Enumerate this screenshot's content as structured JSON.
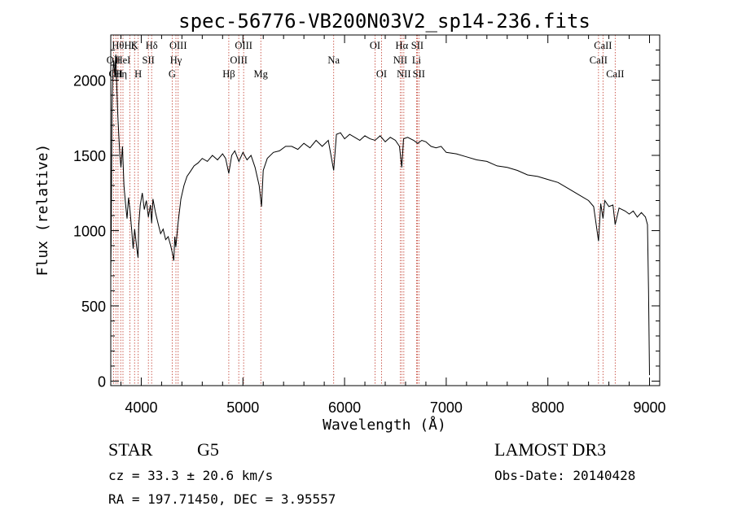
{
  "chart_data": {
    "type": "line",
    "title": "spec-56776-VB200N03V2_sp14-236.fits",
    "xlabel": "Wavelength (Å)",
    "ylabel": "Flux (relative)",
    "xlim": [
      3700,
      9100
    ],
    "ylim": [
      -30,
      2300
    ],
    "xticks": [
      4000,
      5000,
      6000,
      7000,
      8000,
      9000
    ],
    "yticks": [
      0,
      500,
      1000,
      1500,
      2000
    ],
    "grid": false,
    "series": [
      {
        "color": "#000000",
        "x": [
          3700,
          3705,
          3712,
          3720,
          3730,
          3740,
          3750,
          3760,
          3770,
          3780,
          3790,
          3800,
          3815,
          3830,
          3845,
          3860,
          3875,
          3890,
          3905,
          3920,
          3935,
          3950,
          3960,
          3968,
          3975,
          3990,
          4010,
          4030,
          4050,
          4070,
          4090,
          4102,
          4115,
          4140,
          4165,
          4190,
          4215,
          4240,
          4265,
          4290,
          4310,
          4320,
          4330,
          4340,
          4360,
          4390,
          4420,
          4450,
          4480,
          4520,
          4560,
          4600,
          4650,
          4700,
          4750,
          4800,
          4830,
          4861,
          4890,
          4920,
          4960,
          5000,
          5040,
          5080,
          5120,
          5160,
          5183,
          5200,
          5240,
          5300,
          5360,
          5420,
          5480,
          5540,
          5600,
          5660,
          5720,
          5780,
          5840,
          5893,
          5920,
          5960,
          6000,
          6050,
          6100,
          6150,
          6200,
          6250,
          6300,
          6350,
          6400,
          6450,
          6500,
          6540,
          6563,
          6580,
          6620,
          6680,
          6720,
          6760,
          6800,
          6850,
          6900,
          6950,
          7000,
          7100,
          7200,
          7300,
          7400,
          7500,
          7600,
          7700,
          7800,
          7900,
          8000,
          8100,
          8200,
          8300,
          8400,
          8450,
          8498,
          8520,
          8542,
          8560,
          8600,
          8640,
          8662,
          8700,
          8760,
          8800,
          8840,
          8880,
          8920,
          8960,
          8980,
          8990,
          9000
        ],
        "y": [
          700,
          1000,
          1800,
          2050,
          2130,
          2020,
          2170,
          1940,
          1760,
          1620,
          1500,
          1420,
          1560,
          1300,
          1180,
          1080,
          1220,
          1130,
          1010,
          880,
          1010,
          920,
          860,
          820,
          1030,
          1170,
          1250,
          1140,
          1200,
          1090,
          1170,
          1050,
          1210,
          1120,
          1050,
          980,
          1010,
          940,
          960,
          900,
          840,
          800,
          960,
          890,
          1040,
          1210,
          1300,
          1360,
          1390,
          1430,
          1450,
          1480,
          1460,
          1500,
          1470,
          1510,
          1480,
          1380,
          1500,
          1530,
          1460,
          1520,
          1470,
          1500,
          1420,
          1300,
          1160,
          1400,
          1480,
          1520,
          1530,
          1560,
          1560,
          1540,
          1580,
          1550,
          1600,
          1560,
          1600,
          1400,
          1640,
          1650,
          1610,
          1640,
          1620,
          1600,
          1630,
          1610,
          1600,
          1630,
          1590,
          1620,
          1600,
          1560,
          1420,
          1610,
          1620,
          1600,
          1580,
          1600,
          1590,
          1560,
          1550,
          1560,
          1520,
          1510,
          1490,
          1470,
          1460,
          1430,
          1420,
          1400,
          1370,
          1360,
          1340,
          1320,
          1280,
          1240,
          1200,
          1160,
          930,
          1180,
          1080,
          1200,
          1160,
          1170,
          1040,
          1150,
          1130,
          1110,
          1130,
          1090,
          1120,
          1090,
          1040,
          600,
          40
        ]
      }
    ],
    "lines": [
      {
        "x": 3727,
        "label": "OII",
        "row": 1
      },
      {
        "x": 3750,
        "label": "OII",
        "row": 2
      },
      {
        "x": 3771,
        "label": "Hθ",
        "row": 0
      },
      {
        "x": 3798,
        "label": "Hη",
        "row": 2
      },
      {
        "x": 3820,
        "label": "HeI",
        "row": 1
      },
      {
        "x": 3889,
        "label": "Hζ",
        "row": 0
      },
      {
        "x": 3934,
        "label": "K",
        "row": 0
      },
      {
        "x": 3970,
        "label": "H",
        "row": 2
      },
      {
        "x": 4070,
        "label": "SII",
        "row": 1
      },
      {
        "x": 4102,
        "label": "Hδ",
        "row": 0
      },
      {
        "x": 4304,
        "label": "G",
        "row": 2
      },
      {
        "x": 4341,
        "label": "Hγ",
        "row": 1
      },
      {
        "x": 4363,
        "label": "OIII",
        "row": 0
      },
      {
        "x": 4861,
        "label": "Hβ",
        "row": 2
      },
      {
        "x": 4959,
        "label": "OIII",
        "row": 1
      },
      {
        "x": 5007,
        "label": "OIII",
        "row": 0
      },
      {
        "x": 5176,
        "label": "Mg",
        "row": 2
      },
      {
        "x": 5893,
        "label": "Na",
        "row": 1
      },
      {
        "x": 6300,
        "label": "OI",
        "row": 0
      },
      {
        "x": 6364,
        "label": "OI",
        "row": 2
      },
      {
        "x": 6548,
        "label": "NII",
        "row": 1
      },
      {
        "x": 6563,
        "label": "Hα",
        "row": 0
      },
      {
        "x": 6583,
        "label": "NII",
        "row": 2
      },
      {
        "x": 6708,
        "label": "Li",
        "row": 1
      },
      {
        "x": 6716,
        "label": "SII",
        "row": 0
      },
      {
        "x": 6731,
        "label": "SII",
        "row": 2
      },
      {
        "x": 8498,
        "label": "CaII",
        "row": 1
      },
      {
        "x": 8542,
        "label": "CaII",
        "row": 0
      },
      {
        "x": 8662,
        "label": "CaII",
        "row": 2
      }
    ]
  },
  "info": {
    "class": "STAR",
    "subclass": "G5",
    "survey": "LAMOST DR3",
    "redshift": "cz = 33.3 ± 20.6 km/s",
    "obs_date": "Obs-Date: 20140428",
    "coords": "RA = 197.71450, DEC =    3.95557"
  }
}
